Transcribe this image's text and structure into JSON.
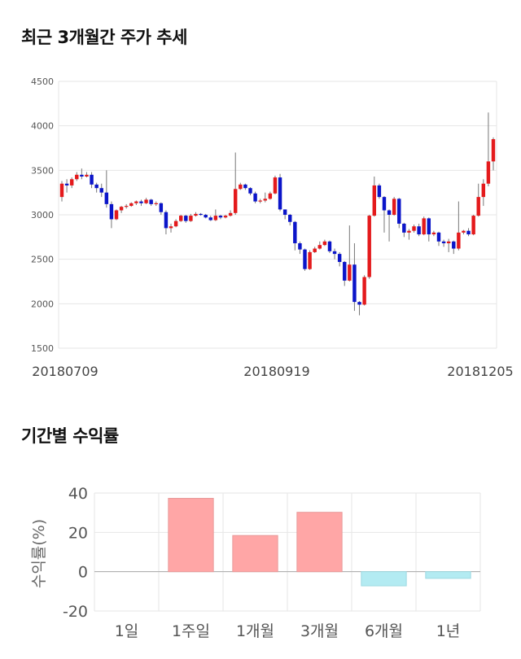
{
  "sections": {
    "price_title": "최근 3개월간 주가 추세",
    "returns_title": "기간별 수익률"
  },
  "colors": {
    "up": "#e41a1c",
    "down": "#0b15c9",
    "wick": "#777777",
    "grid": "#e6e6e6",
    "positive_bar": "#ffa6a6",
    "negative_bar": "#b3ebf2"
  },
  "chart_data": [
    {
      "type": "candlestick",
      "title": "최근 3개월간 주가 추세",
      "y_ticks": [
        "4500",
        "4000",
        "3500",
        "3000",
        "2500",
        "2000",
        "1500"
      ],
      "ylim": [
        1500,
        4500
      ],
      "x_labels": [
        "20180709",
        "20180919",
        "20181205"
      ],
      "grid": true,
      "candles": [
        [
          3200,
          3350,
          3150,
          3380
        ],
        [
          3350,
          3330,
          3250,
          3400
        ],
        [
          3330,
          3400,
          3300,
          3420
        ],
        [
          3400,
          3450,
          3380,
          3480
        ],
        [
          3450,
          3430,
          3400,
          3520
        ],
        [
          3430,
          3450,
          3420,
          3480
        ],
        [
          3450,
          3340,
          3300,
          3480
        ],
        [
          3340,
          3300,
          3250,
          3360
        ],
        [
          3300,
          3250,
          3200,
          3350
        ],
        [
          3250,
          3120,
          3080,
          3500
        ],
        [
          3120,
          2950,
          2850,
          3150
        ],
        [
          2950,
          3050,
          2940,
          3060
        ],
        [
          3050,
          3090,
          3020,
          3100
        ],
        [
          3090,
          3100,
          3070,
          3120
        ],
        [
          3100,
          3130,
          3090,
          3140
        ],
        [
          3130,
          3150,
          3110,
          3160
        ],
        [
          3150,
          3130,
          3100,
          3170
        ],
        [
          3130,
          3170,
          3120,
          3190
        ],
        [
          3170,
          3120,
          3100,
          3180
        ],
        [
          3120,
          3130,
          3100,
          3150
        ],
        [
          3130,
          3030,
          3000,
          3140
        ],
        [
          3030,
          2850,
          2780,
          3050
        ],
        [
          2850,
          2870,
          2800,
          2900
        ],
        [
          2870,
          2930,
          2860,
          2950
        ],
        [
          2930,
          2990,
          2920,
          3000
        ],
        [
          2990,
          2930,
          2910,
          3000
        ],
        [
          2930,
          2990,
          2920,
          3010
        ],
        [
          2990,
          3010,
          2980,
          3030
        ],
        [
          3010,
          3000,
          2990,
          3020
        ],
        [
          3000,
          2970,
          2960,
          3010
        ],
        [
          2970,
          2940,
          2930,
          2990
        ],
        [
          2940,
          2990,
          2930,
          3060
        ],
        [
          2990,
          2970,
          2950,
          3000
        ],
        [
          2970,
          2990,
          2960,
          3000
        ],
        [
          2990,
          3020,
          2980,
          3050
        ],
        [
          3020,
          3290,
          3000,
          3700
        ],
        [
          3290,
          3340,
          3280,
          3360
        ],
        [
          3340,
          3300,
          3280,
          3350
        ],
        [
          3300,
          3240,
          3220,
          3310
        ],
        [
          3240,
          3150,
          3130,
          3260
        ],
        [
          3150,
          3160,
          3130,
          3180
        ],
        [
          3160,
          3180,
          3140,
          3250
        ],
        [
          3180,
          3240,
          3170,
          3260
        ],
        [
          3240,
          3420,
          3230,
          3440
        ],
        [
          3420,
          3060,
          3040,
          3460
        ],
        [
          3060,
          3000,
          2950,
          3060
        ],
        [
          3000,
          2920,
          2880,
          3010
        ],
        [
          2920,
          2680,
          2600,
          2930
        ],
        [
          2680,
          2610,
          2560,
          2700
        ],
        [
          2610,
          2390,
          2370,
          2620
        ],
        [
          2390,
          2580,
          2380,
          2600
        ],
        [
          2580,
          2620,
          2570,
          2640
        ],
        [
          2620,
          2660,
          2610,
          2700
        ],
        [
          2660,
          2700,
          2650,
          2720
        ],
        [
          2700,
          2590,
          2570,
          2710
        ],
        [
          2590,
          2560,
          2500,
          2620
        ],
        [
          2560,
          2470,
          2420,
          2580
        ],
        [
          2470,
          2260,
          2200,
          2480
        ],
        [
          2260,
          2440,
          2250,
          2880
        ],
        [
          2440,
          2020,
          1920,
          2680
        ],
        [
          2020,
          1990,
          1870,
          2030
        ],
        [
          1990,
          2300,
          1980,
          2320
        ],
        [
          2300,
          2990,
          2280,
          3000
        ],
        [
          2990,
          3330,
          2980,
          3430
        ],
        [
          3330,
          3200,
          3180,
          3350
        ],
        [
          3200,
          3050,
          2800,
          3210
        ],
        [
          3050,
          3000,
          2700,
          3060
        ],
        [
          3000,
          3180,
          2990,
          3200
        ],
        [
          3180,
          2900,
          2850,
          3190
        ],
        [
          2900,
          2800,
          2750,
          2910
        ],
        [
          2800,
          2820,
          2720,
          2840
        ],
        [
          2820,
          2870,
          2800,
          2890
        ],
        [
          2870,
          2780,
          2760,
          2900
        ],
        [
          2780,
          2960,
          2770,
          2980
        ],
        [
          2960,
          2780,
          2700,
          2970
        ],
        [
          2780,
          2800,
          2760,
          2820
        ],
        [
          2800,
          2700,
          2650,
          2810
        ],
        [
          2700,
          2680,
          2640,
          2720
        ],
        [
          2680,
          2700,
          2580,
          2730
        ],
        [
          2700,
          2620,
          2560,
          2710
        ],
        [
          2620,
          2800,
          2600,
          3150
        ],
        [
          2800,
          2820,
          2780,
          2830
        ],
        [
          2820,
          2780,
          2760,
          2850
        ],
        [
          2780,
          2990,
          2770,
          3000
        ],
        [
          2990,
          3200,
          2980,
          3350
        ],
        [
          3200,
          3350,
          3100,
          3400
        ],
        [
          3350,
          3600,
          3320,
          4150
        ],
        [
          3600,
          3850,
          3500,
          3870
        ]
      ]
    },
    {
      "type": "bar",
      "title": "기간별 수익률",
      "ylabel": "수익률(%)",
      "categories": [
        "1일",
        "1주일",
        "1개월",
        "3개월",
        "6개월",
        "1년"
      ],
      "values": [
        0,
        37.3,
        18.4,
        30.2,
        -7.2,
        -3.4
      ],
      "y_ticks": [
        "40",
        "20",
        "0",
        "-20"
      ],
      "ylim": [
        -20,
        40
      ],
      "grid": true
    }
  ]
}
